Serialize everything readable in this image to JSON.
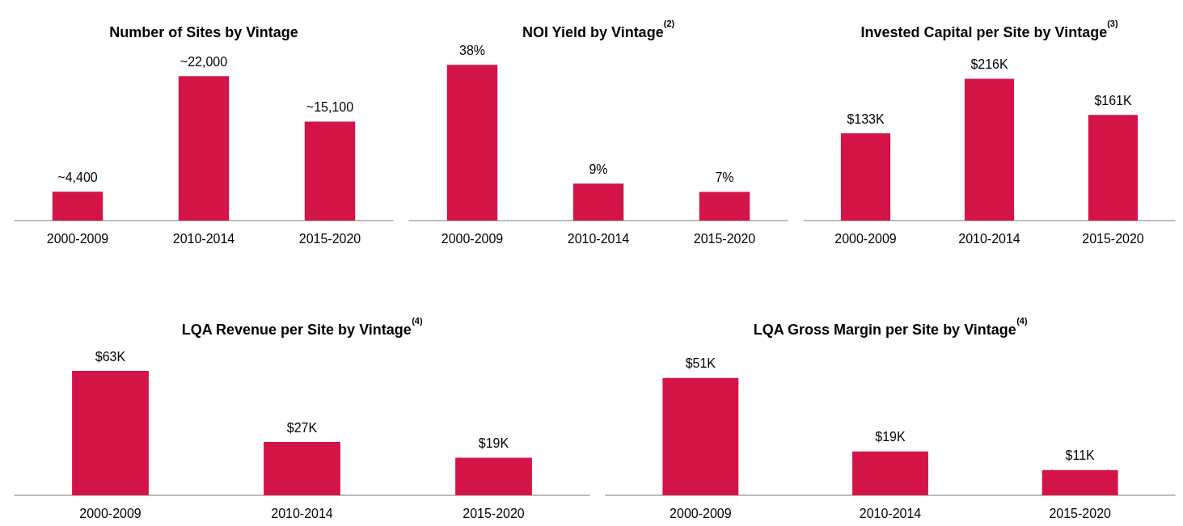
{
  "chart_data": [
    {
      "type": "bar",
      "title": "Number of Sites by Vintage",
      "categories": [
        "2000-2009",
        "2010-2014",
        "2015-2020"
      ],
      "values": [
        4400,
        22000,
        15100
      ],
      "value_labels": [
        "~4,400",
        "~22,000",
        "~15,100"
      ],
      "color": "#d31446"
    },
    {
      "type": "bar",
      "title": "NOI Yield by Vintage$^{(2)}$",
      "categories": [
        "2000-2009",
        "2010-2014",
        "2015-2020"
      ],
      "values": [
        38,
        9,
        7
      ],
      "value_labels": [
        "38%",
        "9%",
        "7%"
      ],
      "color": "#d31446"
    },
    {
      "type": "bar",
      "title": "Invested Capital per Site by Vintage$^{(3)}$",
      "categories": [
        "2000-2009",
        "2010-2014",
        "2015-2020"
      ],
      "values": [
        133,
        216,
        161
      ],
      "value_labels": [
        "$133K",
        "$216K",
        "$161K"
      ],
      "color": "#d31446"
    },
    {
      "type": "bar",
      "title": "LQA Revenue per Site by Vintage$^{(4)}$",
      "categories": [
        "2000-2009",
        "2010-2014",
        "2015-2020"
      ],
      "values": [
        63,
        27,
        19
      ],
      "value_labels": [
        "$63K",
        "$27K",
        "$19K"
      ],
      "color": "#d31446"
    },
    {
      "type": "bar",
      "title": "LQA Gross Margin per Site by Vintage$^{(4)}$",
      "categories": [
        "2000-2009",
        "2010-2014",
        "2015-2020"
      ],
      "values": [
        51,
        19,
        11
      ],
      "value_labels": [
        "$51K",
        "$19K",
        "$11K"
      ],
      "color": "#d31446"
    }
  ]
}
